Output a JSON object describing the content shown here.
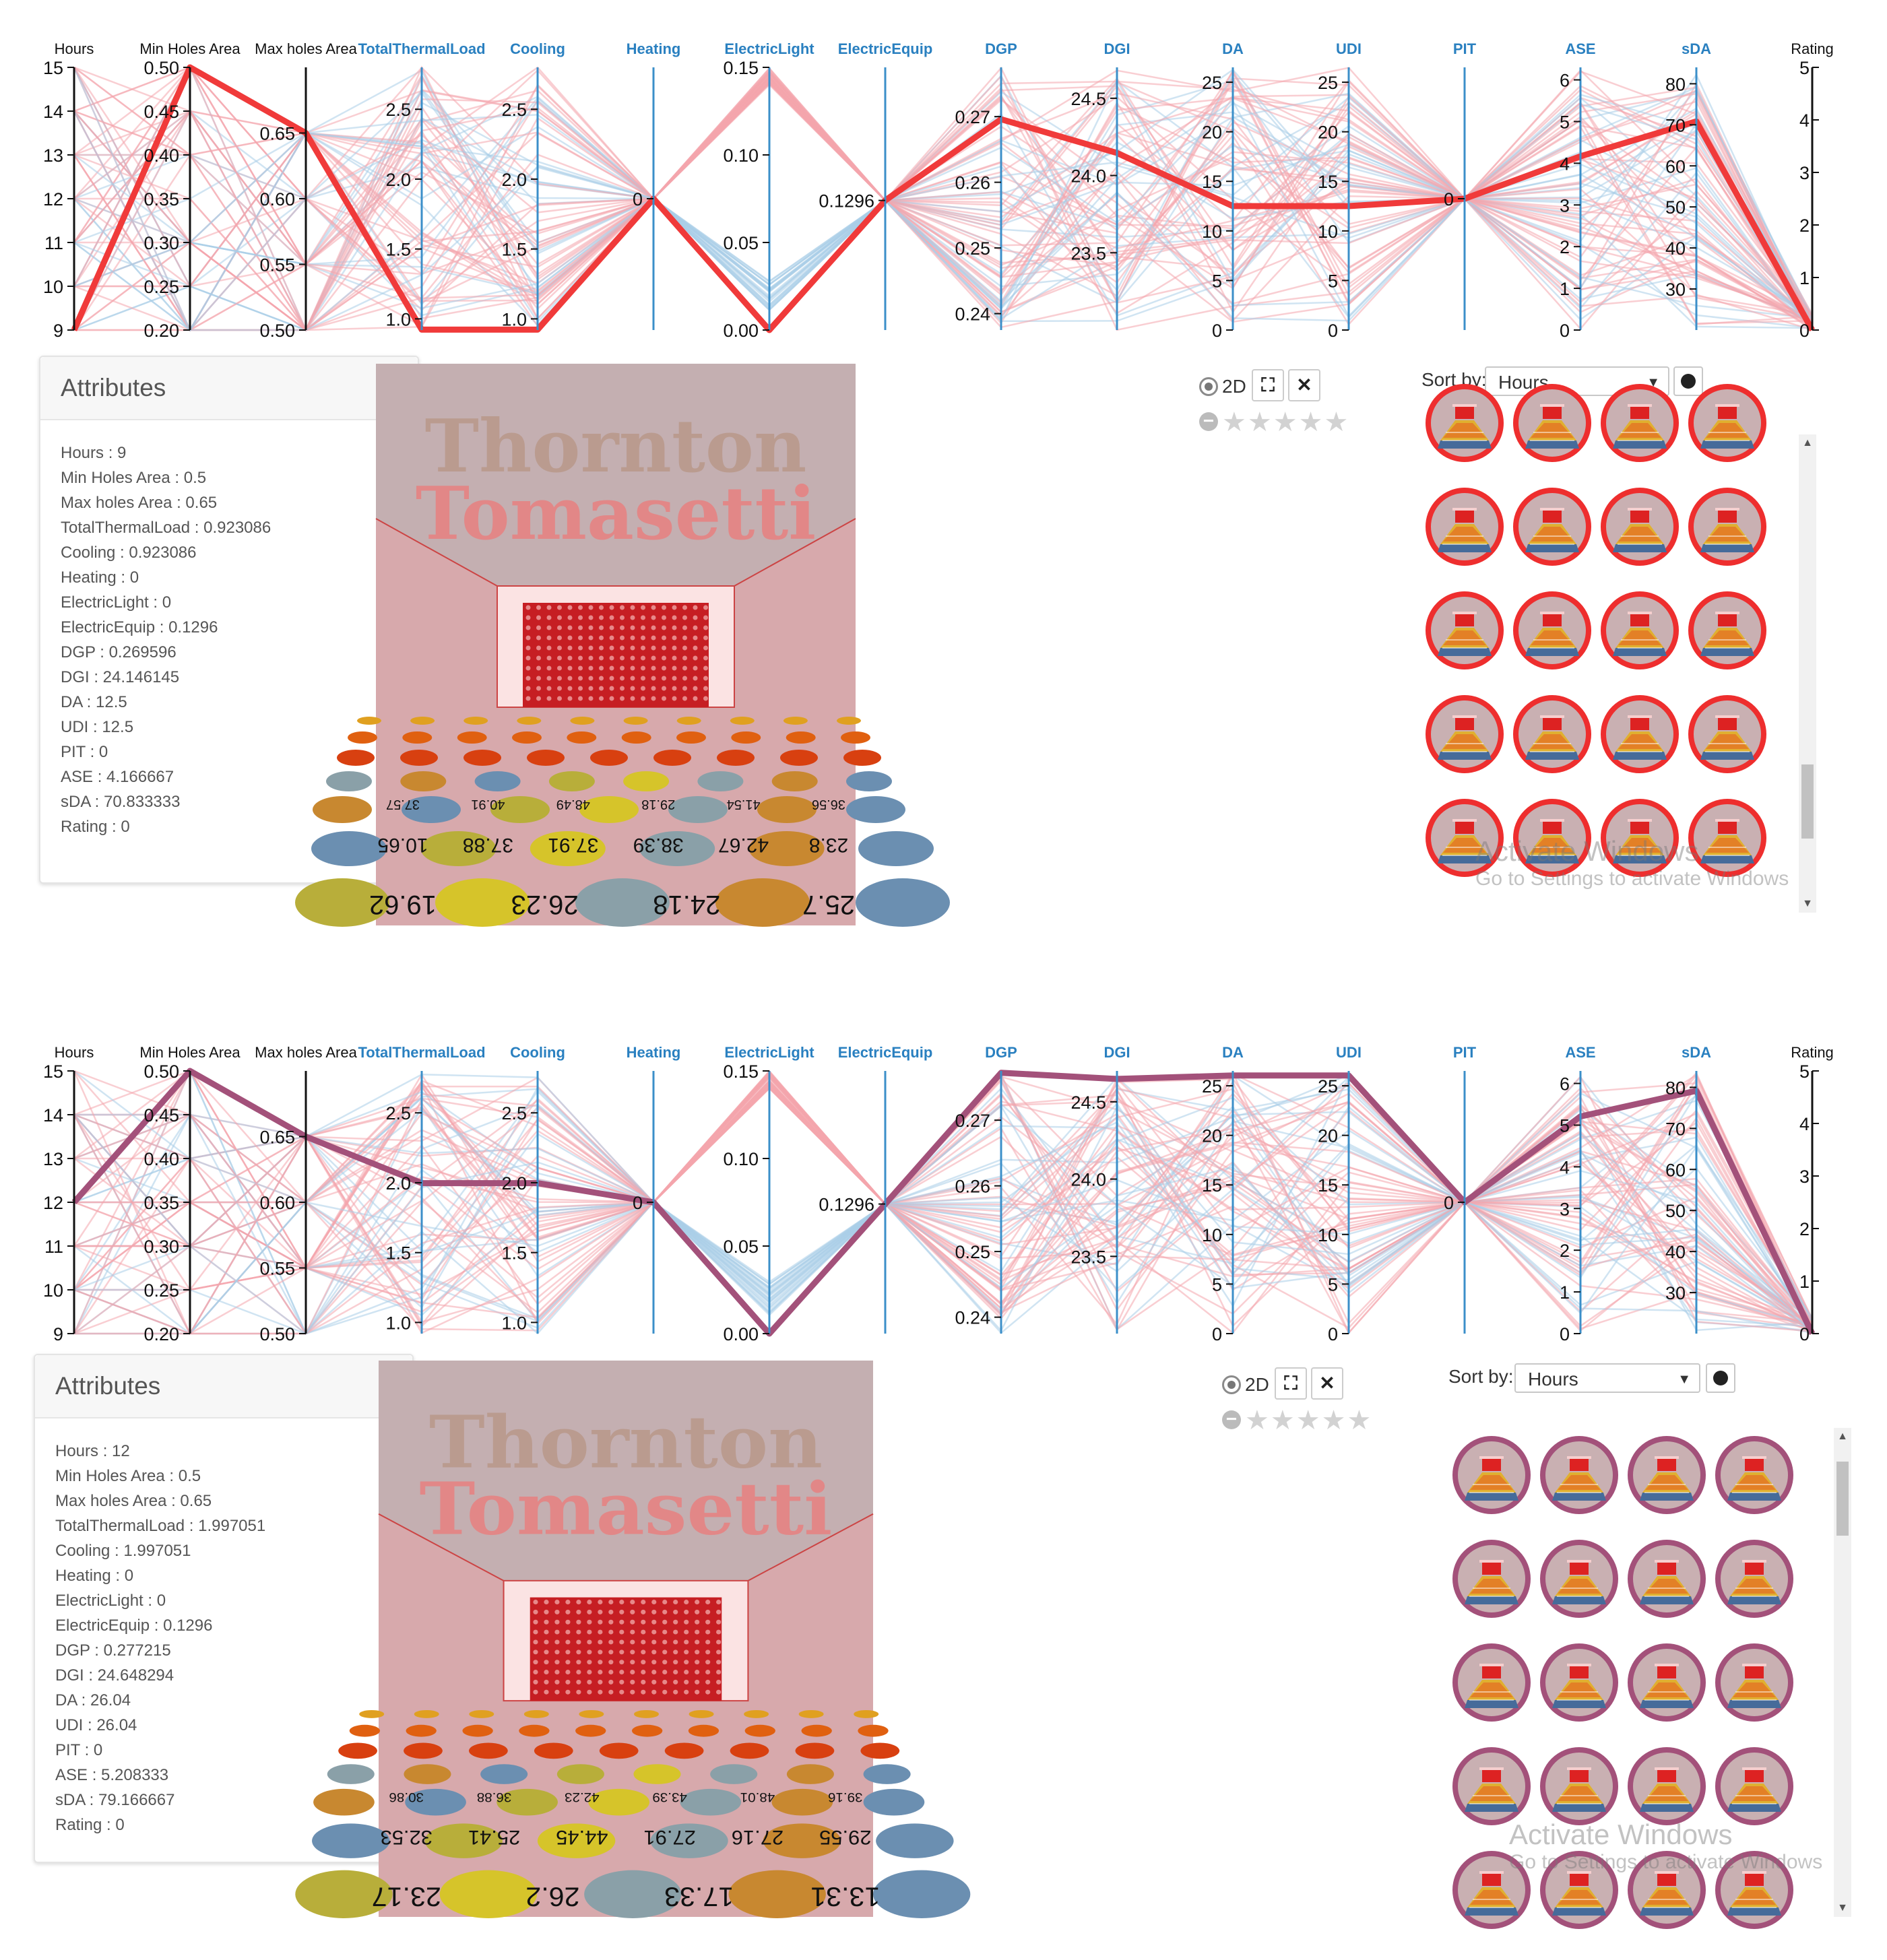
{
  "axes": [
    {
      "key": "Hours",
      "label": "Hours",
      "min": 9,
      "max": 15,
      "ticks": [
        9,
        10,
        11,
        12,
        13,
        14,
        15
      ],
      "fmt": 0,
      "blue": false,
      "side": "left"
    },
    {
      "key": "MinHolesArea",
      "label": "Min Holes Area",
      "min": 0.2,
      "max": 0.5,
      "ticks": [
        0.2,
        0.25,
        0.3,
        0.35,
        0.4,
        0.45,
        0.5
      ],
      "fmt": 2,
      "blue": false,
      "side": "left"
    },
    {
      "key": "MaxHolesArea",
      "label": "Max holes Area",
      "min": 0.5,
      "max": 0.7,
      "ticks": [
        0.5,
        0.55,
        0.6,
        0.65
      ],
      "fmt": 2,
      "blue": false,
      "side": "left"
    },
    {
      "key": "TotalThermalLoad",
      "label": "TotalThermalLoad",
      "min": 0.92,
      "max": 2.8,
      "ticks": [
        1.0,
        1.5,
        2.0,
        2.5
      ],
      "fmt": 1,
      "blue": true,
      "side": "left"
    },
    {
      "key": "Cooling",
      "label": "Cooling",
      "min": 0.92,
      "max": 2.8,
      "ticks": [
        1.0,
        1.5,
        2.0,
        2.5
      ],
      "fmt": 1,
      "blue": true,
      "side": "left"
    },
    {
      "key": "Heating",
      "label": "Heating",
      "min": -1,
      "max": 1,
      "ticks": [
        0
      ],
      "fmt": 0,
      "blue": true,
      "side": "left"
    },
    {
      "key": "ElectricLight",
      "label": "ElectricLight",
      "min": 0,
      "max": 0.15,
      "ticks": [
        0.0,
        0.05,
        0.1,
        0.15
      ],
      "fmt": 2,
      "blue": true,
      "side": "left"
    },
    {
      "key": "ElectricEquip",
      "label": "ElectricEquip",
      "min": 0.1,
      "max": 0.16,
      "ticks": [
        0.1296
      ],
      "fmt": 4,
      "blue": true,
      "side": "left"
    },
    {
      "key": "DGP",
      "label": "DGP",
      "min": 0.2375,
      "max": 0.2775,
      "ticks": [
        0.24,
        0.25,
        0.26,
        0.27
      ],
      "fmt": 2,
      "blue": true,
      "side": "left"
    },
    {
      "key": "DGI",
      "label": "DGI",
      "min": 23.0,
      "max": 24.7,
      "ticks": [
        23.5,
        24.0,
        24.5
      ],
      "fmt": 1,
      "blue": true,
      "side": "left"
    },
    {
      "key": "DA",
      "label": "DA",
      "min": 0,
      "max": 26.5,
      "ticks": [
        0,
        5,
        10,
        15,
        20,
        25
      ],
      "fmt": 0,
      "blue": true,
      "side": "left"
    },
    {
      "key": "UDI",
      "label": "UDI",
      "min": 0,
      "max": 26.5,
      "ticks": [
        0,
        5,
        10,
        15,
        20,
        25
      ],
      "fmt": 0,
      "blue": true,
      "side": "left"
    },
    {
      "key": "PIT",
      "label": "PIT",
      "min": -1,
      "max": 1,
      "ticks": [
        0
      ],
      "fmt": 0,
      "blue": true,
      "side": "left"
    },
    {
      "key": "ASE",
      "label": "ASE",
      "min": 0,
      "max": 6.3,
      "ticks": [
        0,
        1,
        2,
        3,
        4,
        5,
        6
      ],
      "fmt": 0,
      "blue": true,
      "side": "left"
    },
    {
      "key": "sDA",
      "label": "sDA",
      "min": 20,
      "max": 84,
      "ticks": [
        30,
        40,
        50,
        60,
        70,
        80
      ],
      "fmt": 0,
      "blue": true,
      "side": "left"
    },
    {
      "key": "Rating",
      "label": "Rating",
      "min": 0,
      "max": 5,
      "ticks": [
        0,
        1,
        2,
        3,
        4,
        5
      ],
      "fmt": 0,
      "blue": false,
      "side": "right"
    }
  ],
  "panels": [
    {
      "id": "top",
      "highlight_color": "#f03a3a",
      "attributes_title": "Attributes",
      "attributes": [
        {
          "name": "Hours",
          "value": "9"
        },
        {
          "name": "Min Holes Area",
          "value": "0.5"
        },
        {
          "name": "Max holes Area",
          "value": "0.65"
        },
        {
          "name": "TotalThermalLoad",
          "value": "0.923086"
        },
        {
          "name": "Cooling",
          "value": "0.923086"
        },
        {
          "name": "Heating",
          "value": "0"
        },
        {
          "name": "ElectricLight",
          "value": "0"
        },
        {
          "name": "ElectricEquip",
          "value": "0.1296"
        },
        {
          "name": "DGP",
          "value": "0.269596"
        },
        {
          "name": "DGI",
          "value": "24.146145"
        },
        {
          "name": "DA",
          "value": "12.5"
        },
        {
          "name": "UDI",
          "value": "12.5"
        },
        {
          "name": "PIT",
          "value": "0"
        },
        {
          "name": "ASE",
          "value": "4.166667"
        },
        {
          "name": "sDA",
          "value": "70.833333"
        },
        {
          "name": "Rating",
          "value": "0"
        }
      ],
      "highlight": [
        9,
        0.5,
        0.65,
        0.923086,
        0.923086,
        0,
        0,
        0.1296,
        0.269596,
        24.146145,
        12.5,
        12.5,
        0,
        4.166667,
        70.833333,
        0
      ],
      "render_logo": [
        "Thornton",
        "Tomasetti"
      ],
      "render_rows": [
        [
          "19.62",
          "26.23",
          "24.18",
          "25.7"
        ],
        [
          "10.65",
          "37.88",
          "37.91",
          "38.39",
          "42.67",
          "23.8"
        ],
        [
          "37.57",
          "40.91",
          "48.49",
          "29.18",
          "41.54",
          "36.56"
        ]
      ],
      "mode_label": "2D",
      "rating_stars": "★★★★★",
      "sort_label": "Sort by:",
      "sort_value": "Hours",
      "thumb_ring_color": "#ee2e2e",
      "watermark_title": "Activate Windows",
      "watermark_sub": "Go to Settings to activate Windows"
    },
    {
      "id": "bottom",
      "highlight_color": "#a3517a",
      "attributes_title": "Attributes",
      "attributes": [
        {
          "name": "Hours",
          "value": "12"
        },
        {
          "name": "Min Holes Area",
          "value": "0.5"
        },
        {
          "name": "Max holes Area",
          "value": "0.65"
        },
        {
          "name": "TotalThermalLoad",
          "value": "1.997051"
        },
        {
          "name": "Cooling",
          "value": "1.997051"
        },
        {
          "name": "Heating",
          "value": "0"
        },
        {
          "name": "ElectricLight",
          "value": "0"
        },
        {
          "name": "ElectricEquip",
          "value": "0.1296"
        },
        {
          "name": "DGP",
          "value": "0.277215"
        },
        {
          "name": "DGI",
          "value": "24.648294"
        },
        {
          "name": "DA",
          "value": "26.04"
        },
        {
          "name": "UDI",
          "value": "26.04"
        },
        {
          "name": "PIT",
          "value": "0"
        },
        {
          "name": "ASE",
          "value": "5.208333"
        },
        {
          "name": "sDA",
          "value": "79.166667"
        },
        {
          "name": "Rating",
          "value": "0"
        }
      ],
      "highlight": [
        12,
        0.5,
        0.65,
        1.997051,
        1.997051,
        0,
        0,
        0.1296,
        0.277215,
        24.648294,
        26.04,
        26.04,
        0,
        5.208333,
        79.166667,
        0
      ],
      "render_logo": [
        "Thornton",
        "Tomasetti"
      ],
      "render_rows": [
        [
          "23.17",
          "26.2",
          "17.33",
          "13.31"
        ],
        [
          "32.53",
          "25.41",
          "44.45",
          "27.91",
          "27.16",
          "29.55"
        ],
        [
          "30.86",
          "36.88",
          "42.23",
          "43.39",
          "48.01",
          "39.16"
        ]
      ],
      "mode_label": "2D",
      "rating_stars": "★★★★★",
      "sort_label": "Sort by:",
      "sort_value": "Hours",
      "thumb_ring_color": "#a3517a",
      "watermark_title": "Activate Windows",
      "watermark_sub": "Go to Settings to activate Windows"
    }
  ]
}
